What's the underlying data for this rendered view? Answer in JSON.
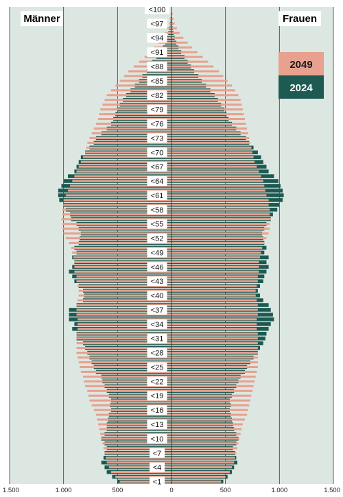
{
  "chart_data": {
    "type": "bar",
    "orientation": "horizontal",
    "subtype": "population-pyramid",
    "labels": {
      "left": "Männer",
      "right": "Frauen"
    },
    "legend": {
      "placement": "top-right",
      "items": [
        {
          "name": "2049",
          "color": "#e8a18e"
        },
        {
          "name": "2024",
          "color": "#1d5a52"
        }
      ]
    },
    "colors": {
      "background": "#dde7e2",
      "axis_line": "#3c3c3c",
      "age_label_bg": "#ffffff"
    },
    "x_tick_labels": [
      "1.500",
      "1.000",
      "500",
      "0",
      "500",
      "1.000",
      "1.500"
    ],
    "x_tick_values": [
      -1500,
      -1000,
      -500,
      0,
      500,
      1000,
      1500
    ],
    "xlim": [
      -1500,
      1500
    ],
    "age_tick_labels": [
      "<1",
      "<4",
      "<7",
      "<10",
      "<13",
      "<16",
      "<19",
      "<22",
      "<25",
      "<28",
      "<31",
      "<34",
      "<37",
      "<40",
      "<43",
      "<46",
      "<49",
      "<52",
      "<55",
      "<58",
      "<61",
      "<64",
      "<67",
      "<70",
      "<73",
      "<76",
      "<79",
      "<82",
      "<85",
      "<88",
      "<91",
      "<94",
      "<97",
      "<100"
    ],
    "age_tick_indices": [
      0,
      3,
      6,
      9,
      12,
      15,
      18,
      21,
      24,
      27,
      30,
      33,
      36,
      39,
      42,
      45,
      48,
      51,
      54,
      57,
      60,
      63,
      66,
      69,
      72,
      75,
      78,
      81,
      84,
      87,
      90,
      93,
      96,
      99
    ],
    "series": [
      {
        "name": "2024",
        "male": [
          500,
          550,
          600,
          620,
          650,
          630,
          620,
          600,
          620,
          650,
          620,
          600,
          600,
          590,
          580,
          560,
          570,
          560,
          580,
          600,
          620,
          640,
          650,
          700,
          720,
          740,
          760,
          780,
          800,
          820,
          880,
          880,
          920,
          900,
          950,
          950,
          950,
          880,
          820,
          810,
          820,
          860,
          900,
          920,
          950,
          920,
          900,
          920,
          880,
          900,
          860,
          850,
          840,
          860,
          880,
          930,
          940,
          980,
          1000,
          1040,
          1050,
          1050,
          1020,
          1000,
          960,
          900,
          880,
          860,
          840,
          800,
          760,
          720,
          700,
          650,
          600,
          560,
          540,
          520,
          500,
          480,
          450,
          420,
          380,
          340,
          300,
          270,
          230,
          200,
          180,
          140,
          110,
          80,
          60,
          45,
          30,
          20,
          12,
          8,
          5,
          3
        ],
        "female": [
          480,
          520,
          560,
          580,
          610,
          600,
          590,
          570,
          600,
          620,
          600,
          580,
          570,
          560,
          550,
          540,
          550,
          540,
          560,
          580,
          600,
          620,
          640,
          680,
          700,
          730,
          760,
          800,
          820,
          850,
          870,
          880,
          900,
          920,
          950,
          940,
          920,
          900,
          850,
          820,
          800,
          820,
          850,
          860,
          880,
          900,
          880,
          900,
          860,
          880,
          860,
          850,
          840,
          860,
          880,
          920,
          940,
          980,
          1000,
          1030,
          1040,
          1030,
          1010,
          990,
          950,
          900,
          880,
          850,
          830,
          800,
          760,
          720,
          690,
          640,
          600,
          560,
          530,
          510,
          490,
          460,
          430,
          400,
          360,
          320,
          280,
          250,
          210,
          180,
          150,
          120,
          90,
          65,
          45,
          30,
          20,
          12,
          8,
          5,
          3,
          2
        ]
      },
      {
        "name": "2049",
        "male": [
          480,
          520,
          560,
          580,
          600,
          610,
          620,
          630,
          640,
          650,
          660,
          670,
          680,
          690,
          700,
          720,
          740,
          760,
          770,
          780,
          800,
          810,
          820,
          840,
          850,
          860,
          870,
          880,
          880,
          880,
          880,
          880,
          870,
          870,
          870,
          880,
          880,
          880,
          870,
          860,
          860,
          870,
          880,
          880,
          900,
          900,
          900,
          910,
          920,
          930,
          950,
          980,
          1000,
          1010,
          1010,
          1020,
          1010,
          1010,
          1000,
          1000,
          980,
          960,
          940,
          920,
          900,
          880,
          860,
          840,
          820,
          800,
          790,
          780,
          760,
          740,
          720,
          700,
          680,
          670,
          660,
          640,
          620,
          600,
          560,
          520,
          480,
          440,
          400,
          350,
          300,
          250,
          200,
          160,
          120,
          90,
          60,
          40,
          25,
          15,
          8,
          4
        ],
        "female": [
          460,
          500,
          540,
          560,
          580,
          590,
          600,
          610,
          620,
          630,
          640,
          650,
          660,
          680,
          700,
          710,
          720,
          730,
          740,
          750,
          760,
          770,
          780,
          790,
          800,
          800,
          800,
          800,
          800,
          800,
          800,
          800,
          790,
          790,
          790,
          800,
          800,
          800,
          790,
          780,
          780,
          790,
          800,
          800,
          810,
          810,
          810,
          820,
          830,
          840,
          860,
          880,
          900,
          910,
          910,
          920,
          910,
          910,
          900,
          900,
          880,
          870,
          860,
          850,
          830,
          810,
          790,
          770,
          760,
          750,
          740,
          730,
          720,
          710,
          700,
          690,
          680,
          670,
          660,
          650,
          640,
          620,
          590,
          560,
          520,
          480,
          440,
          390,
          340,
          290,
          240,
          190,
          150,
          110,
          75,
          50,
          30,
          18,
          10,
          5
        ]
      }
    ]
  }
}
